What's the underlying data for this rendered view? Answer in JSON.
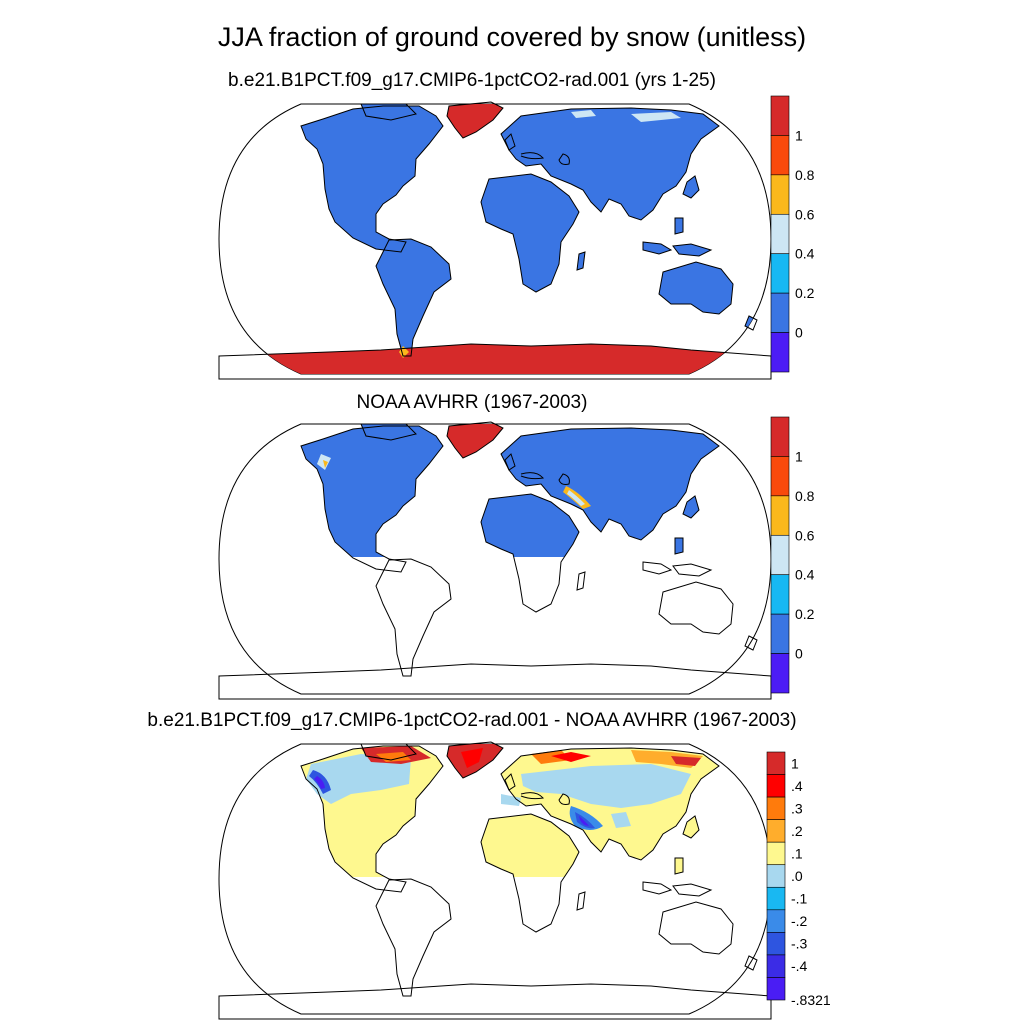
{
  "title": "JJA fraction of ground covered by snow (unitless)",
  "panels": [
    {
      "title": "b.e21.B1PCT.f09_g17.CMIP6-1pctCO2-rad.001 (yrs 1-25)",
      "colorbar": {
        "labels": [
          "1",
          "0.8",
          "0.6",
          "0.4",
          "0.2",
          "0"
        ],
        "colors": [
          "#d62a2a",
          "#f94a0c",
          "#fbb81c",
          "#cde6f4",
          "#17b8f3",
          "#3a75e3",
          "#4c1cf5"
        ]
      }
    },
    {
      "title": "NOAA AVHRR (1967-2003)",
      "colorbar": {
        "labels": [
          "1",
          "0.8",
          "0.6",
          "0.4",
          "0.2",
          "0"
        ],
        "colors": [
          "#d62a2a",
          "#f94a0c",
          "#fbb81c",
          "#cde6f4",
          "#17b8f3",
          "#3a75e3",
          "#4c1cf5"
        ]
      }
    },
    {
      "title": "b.e21.B1PCT.f09_g17.CMIP6-1pctCO2-rad.001 - NOAA AVHRR (1967-2003)",
      "colorbar": {
        "labels": [
          "1",
          ".4",
          ".3",
          ".2",
          ".1",
          ".0",
          "-.1",
          "-.2",
          "-.3",
          "-.4",
          "-.8321"
        ],
        "colors": [
          "#d62a2a",
          "#ff0000",
          "#ff7b0c",
          "#ffad2c",
          "#fef88f",
          "#a8d8ef",
          "#19b8f2",
          "#3a8be9",
          "#2e55e0",
          "#3b2ce6",
          "#4a1df4"
        ]
      }
    }
  ]
}
